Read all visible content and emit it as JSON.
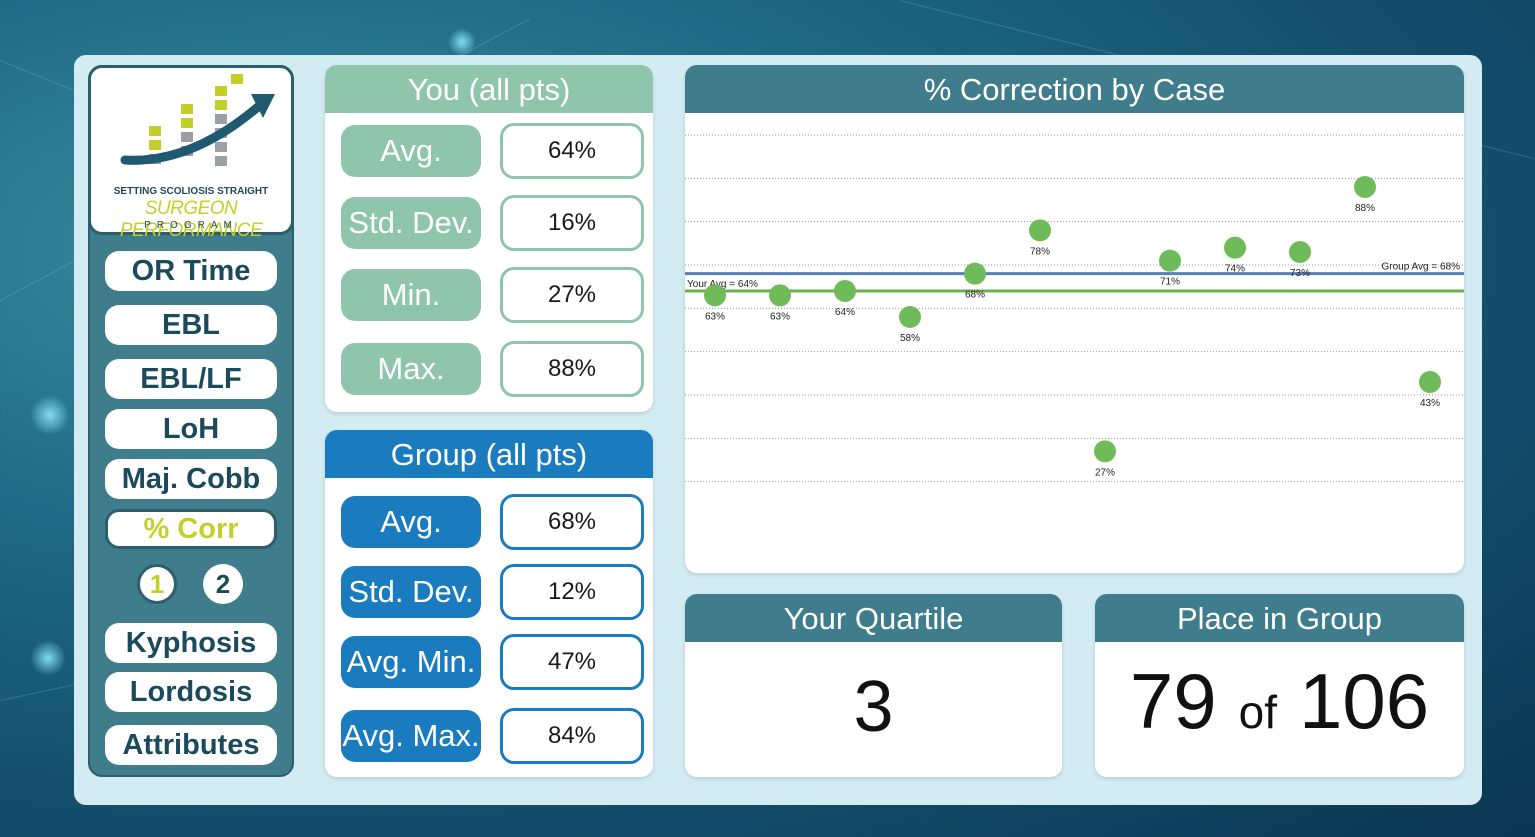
{
  "nav": {
    "logo": {
      "line1": "SETTING SCOLIOSIS STRAIGHT",
      "line2": "SURGEON PERFORMANCE",
      "line3": "PROGRAM"
    },
    "items": [
      {
        "label": "OR Time",
        "active": false
      },
      {
        "label": "EBL",
        "active": false
      },
      {
        "label": "EBL/LF",
        "active": false
      },
      {
        "label": "LoH",
        "active": false
      },
      {
        "label": "Maj. Cobb",
        "active": false
      },
      {
        "label": "% Corr",
        "active": true
      }
    ],
    "page_buttons": [
      "1",
      "2"
    ],
    "items_bottom": [
      {
        "label": "Kyphosis"
      },
      {
        "label": "Lordosis"
      },
      {
        "label": "Attributes"
      }
    ]
  },
  "you": {
    "title": "You (all pts)",
    "stats": [
      {
        "label": "Avg.",
        "value": "64%"
      },
      {
        "label": "Std. Dev.",
        "value": "16%"
      },
      {
        "label": "Min.",
        "value": "27%"
      },
      {
        "label": "Max.",
        "value": "88%"
      }
    ]
  },
  "group": {
    "title": "Group (all pts)",
    "stats": [
      {
        "label": "Avg.",
        "value": "68%"
      },
      {
        "label": "Std. Dev.",
        "value": "12%"
      },
      {
        "label": "Avg. Min.",
        "value": "47%"
      },
      {
        "label": "Avg. Max.",
        "value": "84%"
      }
    ]
  },
  "chart_data": {
    "type": "scatter",
    "title": "% Correction by Case",
    "x": [
      1,
      2,
      3,
      4,
      5,
      6,
      7,
      8,
      9,
      10,
      11,
      12
    ],
    "values": [
      63,
      63,
      64,
      58,
      68,
      78,
      27,
      71,
      74,
      73,
      88,
      43
    ],
    "data_labels": [
      "63%",
      "63%",
      "64%",
      "58%",
      "68%",
      "78%",
      "27%",
      "71%",
      "74%",
      "73%",
      "88%",
      "43%"
    ],
    "reference_lines": [
      {
        "label": "Your Avg = 64%",
        "value": 64,
        "color": "#6ab04c"
      },
      {
        "label": "Group Avg = 68%",
        "value": 68,
        "color": "#5b7fb8"
      }
    ],
    "ylim": [
      10,
      100
    ],
    "grid": true,
    "point_color": "#6fbb5a"
  },
  "quartile": {
    "title": "Your Quartile",
    "value": "3"
  },
  "place": {
    "title": "Place in Group",
    "rank": "79",
    "of": "of",
    "total": "106"
  }
}
